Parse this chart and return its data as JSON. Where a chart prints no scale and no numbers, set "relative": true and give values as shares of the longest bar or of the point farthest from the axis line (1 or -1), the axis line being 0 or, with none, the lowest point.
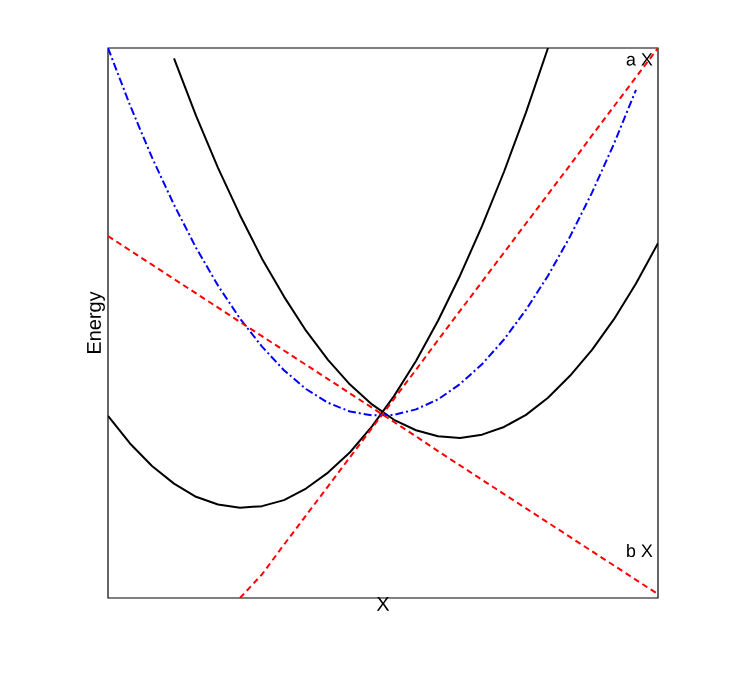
{
  "chart_data": {
    "type": "line",
    "relative": true,
    "xlabel": "X",
    "ylabel": "Energy",
    "categories": [
      null,
      null,
      null,
      null,
      null,
      null,
      null,
      null,
      null,
      null,
      null,
      null,
      null,
      null,
      null,
      null,
      null,
      null,
      null,
      null,
      null,
      null,
      null,
      null,
      null,
      null
    ],
    "series": [
      {
        "color": "#000000",
        "line_style": "solid",
        "values": [
          0.331,
          0.281,
          0.24,
          0.208,
          0.184,
          0.17,
          0.164,
          0.167,
          0.178,
          0.199,
          0.228,
          0.265,
          0.312,
          0.367,
          0.431,
          0.504,
          0.586,
          0.676,
          0.775,
          0.883,
          1.0,
          null,
          null,
          null,
          null,
          null
        ]
      },
      {
        "color": "#000000",
        "line_style": "solid",
        "values": [
          null,
          null,
          null,
          0.981,
          0.877,
          0.782,
          0.696,
          0.617,
          0.548,
          0.486,
          0.433,
          0.388,
          0.352,
          0.324,
          0.305,
          0.294,
          0.291,
          0.297,
          0.311,
          0.333,
          0.364,
          0.404,
          0.451,
          0.507,
          0.572,
          0.645
        ]
      },
      {
        "color": "#0000ff",
        "line_style": "dashdot",
        "values": [
          1.0,
          0.896,
          0.801,
          0.715,
          0.637,
          0.568,
          0.508,
          0.457,
          0.414,
          0.38,
          0.355,
          0.339,
          0.332,
          0.333,
          0.343,
          0.361,
          0.389,
          0.425,
          0.47,
          0.524,
          0.586,
          0.657,
          0.737,
          0.826,
          0.924,
          null
        ]
      },
      {
        "color": "#ff0000",
        "line_style": "dashed",
        "values": [
          null,
          null,
          null,
          null,
          null,
          null,
          0.0,
          0.043,
          0.097,
          0.15,
          0.203,
          0.256,
          0.309,
          0.362,
          0.415,
          0.469,
          0.522,
          0.575,
          0.628,
          0.681,
          0.734,
          0.787,
          0.841,
          0.894,
          0.947,
          1.0
        ]
      },
      {
        "color": "#ff0000",
        "line_style": "dashed",
        "values": [
          0.658,
          0.632,
          0.606,
          0.58,
          0.554,
          0.528,
          0.502,
          0.476,
          0.45,
          0.424,
          0.398,
          0.372,
          0.346,
          0.32,
          0.294,
          0.267,
          0.241,
          0.215,
          0.189,
          0.163,
          0.137,
          0.111,
          0.085,
          0.059,
          0.033,
          0.007
        ]
      }
    ],
    "annotations": [
      "a X",
      "b X"
    ],
    "marker": "none"
  }
}
